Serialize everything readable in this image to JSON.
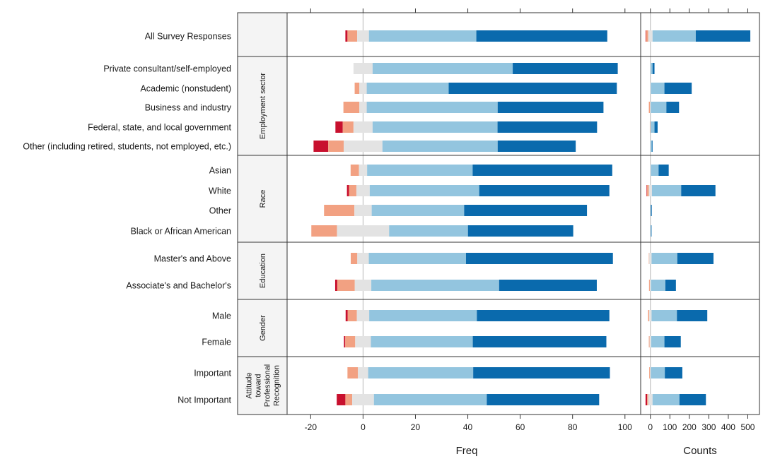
{
  "colors": {
    "strong_neg": "#c8102e",
    "neg": "#f2a182",
    "neutral": "#e3e3e3",
    "pos": "#93c5df",
    "strong_pos": "#0a6aad",
    "panel_frame": "#333333",
    "strip_bg": "#f4f4f4",
    "zero_line": "#b5b5b5"
  },
  "chart_data": {
    "type": "bar",
    "subtype": "diverging stacked (Likert)",
    "layout": "horizontal bars, two panels with grouped strips",
    "segment_order": [
      "strong_neg",
      "neg",
      "neutral",
      "pos",
      "strong_pos"
    ],
    "neutral_split": "centered on zero",
    "freq_panel": {
      "xlabel": "Freq",
      "xlim": [
        -29,
        106
      ],
      "ticks": [
        -20,
        0,
        20,
        40,
        60,
        80,
        100
      ],
      "tick_labels": [
        "-20",
        "0",
        "20",
        "40",
        "60",
        "80",
        "100"
      ],
      "zero_line": true
    },
    "counts_panel": {
      "xlabel": "Counts",
      "xlim": [
        -50,
        560
      ],
      "ticks": [
        0,
        100,
        200,
        300,
        400,
        500
      ],
      "tick_labels": [
        "0",
        "100",
        "200",
        "300",
        "400",
        "500"
      ]
    },
    "groups": [
      {
        "strip": "",
        "rows": [
          {
            "label": "All Survey Responses",
            "values": [
              0.8,
              3.7,
              4.5,
              41,
              50
            ],
            "counts": [
              2,
              12,
              22,
              222,
              280
            ]
          }
        ]
      },
      {
        "strip": "Employment sector",
        "rows": [
          {
            "label": "Private consultant/self-employed",
            "values": [
              0,
              0,
              7.3,
              53.5,
              40.1
            ],
            "counts": [
              0,
              0,
              2,
              10,
              10
            ]
          },
          {
            "label": "Academic (nonstudent)",
            "values": [
              0,
              1.8,
              2.8,
              31.3,
              64.2
            ],
            "counts": [
              0,
              0,
              4,
              70,
              140
            ]
          },
          {
            "label": "Business and industry",
            "values": [
              0,
              6.1,
              2.8,
              50,
              40.4
            ],
            "counts": [
              0,
              6,
              4,
              80,
              65
            ]
          },
          {
            "label": "Federal, state, and local government",
            "values": [
              2.8,
              4.1,
              7.3,
              47.7,
              38
            ],
            "counts": [
              0,
              2,
              2,
              20,
              16
            ]
          },
          {
            "label": "Other (including retired, students, not employed, etc.)",
            "values": [
              5.6,
              5.9,
              14.8,
              44,
              29.8
            ],
            "counts": [
              0,
              0,
              2,
              6,
              4
            ]
          }
        ]
      },
      {
        "strip": "Race",
        "rows": [
          {
            "label": "Asian",
            "values": [
              0,
              3.2,
              3.1,
              40.3,
              53.3
            ],
            "counts": [
              0,
              0,
              4,
              40,
              52
            ]
          },
          {
            "label": "White",
            "values": [
              0.8,
              2.8,
              5.1,
              41.8,
              49.7
            ],
            "counts": [
              2,
              10,
              16,
              150,
              176
            ]
          },
          {
            "label": "Other",
            "values": [
              0,
              11.6,
              6.6,
              35.3,
              46.9
            ],
            "counts": [
              0,
              0,
              0,
              3,
              4
            ]
          },
          {
            "label": "Black or African American",
            "values": [
              0,
              9.8,
              19.9,
              30.1,
              40.2
            ],
            "counts": [
              0,
              0,
              2,
              2,
              2
            ]
          }
        ]
      },
      {
        "strip": "Education",
        "rows": [
          {
            "label": "Master's and Above",
            "values": [
              0,
              2.5,
              4.4,
              37.1,
              56.1
            ],
            "counts": [
              0,
              2,
              12,
              132,
              186
            ]
          },
          {
            "label": "Associate's and Bachelor's",
            "values": [
              0.8,
              6.7,
              6.3,
              48.8,
              37.3
            ],
            "counts": [
              0,
              4,
              6,
              74,
              54
            ]
          }
        ]
      },
      {
        "strip": "Gender",
        "rows": [
          {
            "label": "Male",
            "values": [
              0.8,
              3.5,
              4.7,
              41.1,
              50.6
            ],
            "counts": [
              0,
              6,
              12,
              130,
              156
            ]
          },
          {
            "label": "Female",
            "values": [
              0.5,
              3.8,
              6.0,
              38.9,
              51
            ],
            "counts": [
              0,
              4,
              8,
              68,
              84
            ]
          }
        ]
      },
      {
        "strip": "Attitude toward Professional Recognition",
        "strip_lines": [
          "Attitude",
          "toward",
          "Professional",
          "Recognition"
        ],
        "rows": [
          {
            "label": "Important",
            "values": [
              0,
              4,
              3.9,
              40.1,
              52.2
            ],
            "counts": [
              0,
              4,
              4,
              72,
              90
            ]
          },
          {
            "label": "Not Important",
            "values": [
              3.3,
              2.6,
              8.3,
              43.1,
              42.9
            ],
            "counts": [
              8,
              6,
              22,
              138,
              136
            ]
          }
        ]
      }
    ]
  }
}
